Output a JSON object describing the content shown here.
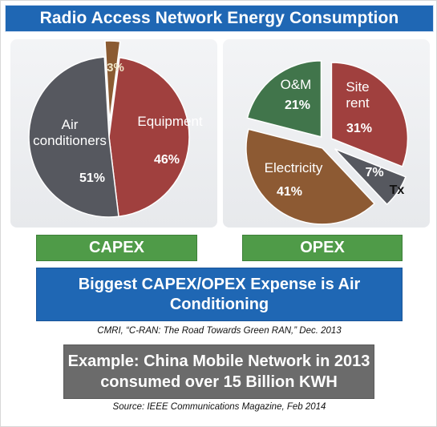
{
  "title": "Radio Access Network Energy Consumption",
  "chart_data": [
    {
      "type": "pie",
      "name": "CAPEX",
      "slices": [
        {
          "label": "Equipment",
          "value": 46,
          "value_label": "46%",
          "color": "#a0403e",
          "exploded": false
        },
        {
          "label": "Air\nconditioners",
          "value": 51,
          "value_label": "51%",
          "color": "#56585f",
          "exploded": false
        },
        {
          "label": "",
          "value": 3,
          "value_label": "3%",
          "color": "#8b5b32",
          "exploded": true
        }
      ]
    },
    {
      "type": "pie",
      "name": "OPEX",
      "slices": [
        {
          "label": "Site\nrent",
          "value": 31,
          "value_label": "31%",
          "color": "#a0403e",
          "exploded": true
        },
        {
          "label": "Tx",
          "value": 7,
          "value_label": "7%",
          "color": "#56585f",
          "exploded": true
        },
        {
          "label": "Electricity",
          "value": 41,
          "value_label": "41%",
          "color": "#8d5a33",
          "exploded": true
        },
        {
          "label": "O&M",
          "value": 21,
          "value_label": "21%",
          "color": "#41754b",
          "exploded": true
        }
      ]
    }
  ],
  "capex_label": "CAPEX",
  "opex_label": "OPEX",
  "headline": "Biggest CAPEX/OPEX Expense is Air Conditioning",
  "citation": "CMRI, “C-RAN: The Road Towards Green RAN,” Dec. 2013",
  "example": "Example: China Mobile Network in 2013 consumed over 15 Billion KWH",
  "source": "Source: IEEE Communications Magazine, Feb 2014"
}
